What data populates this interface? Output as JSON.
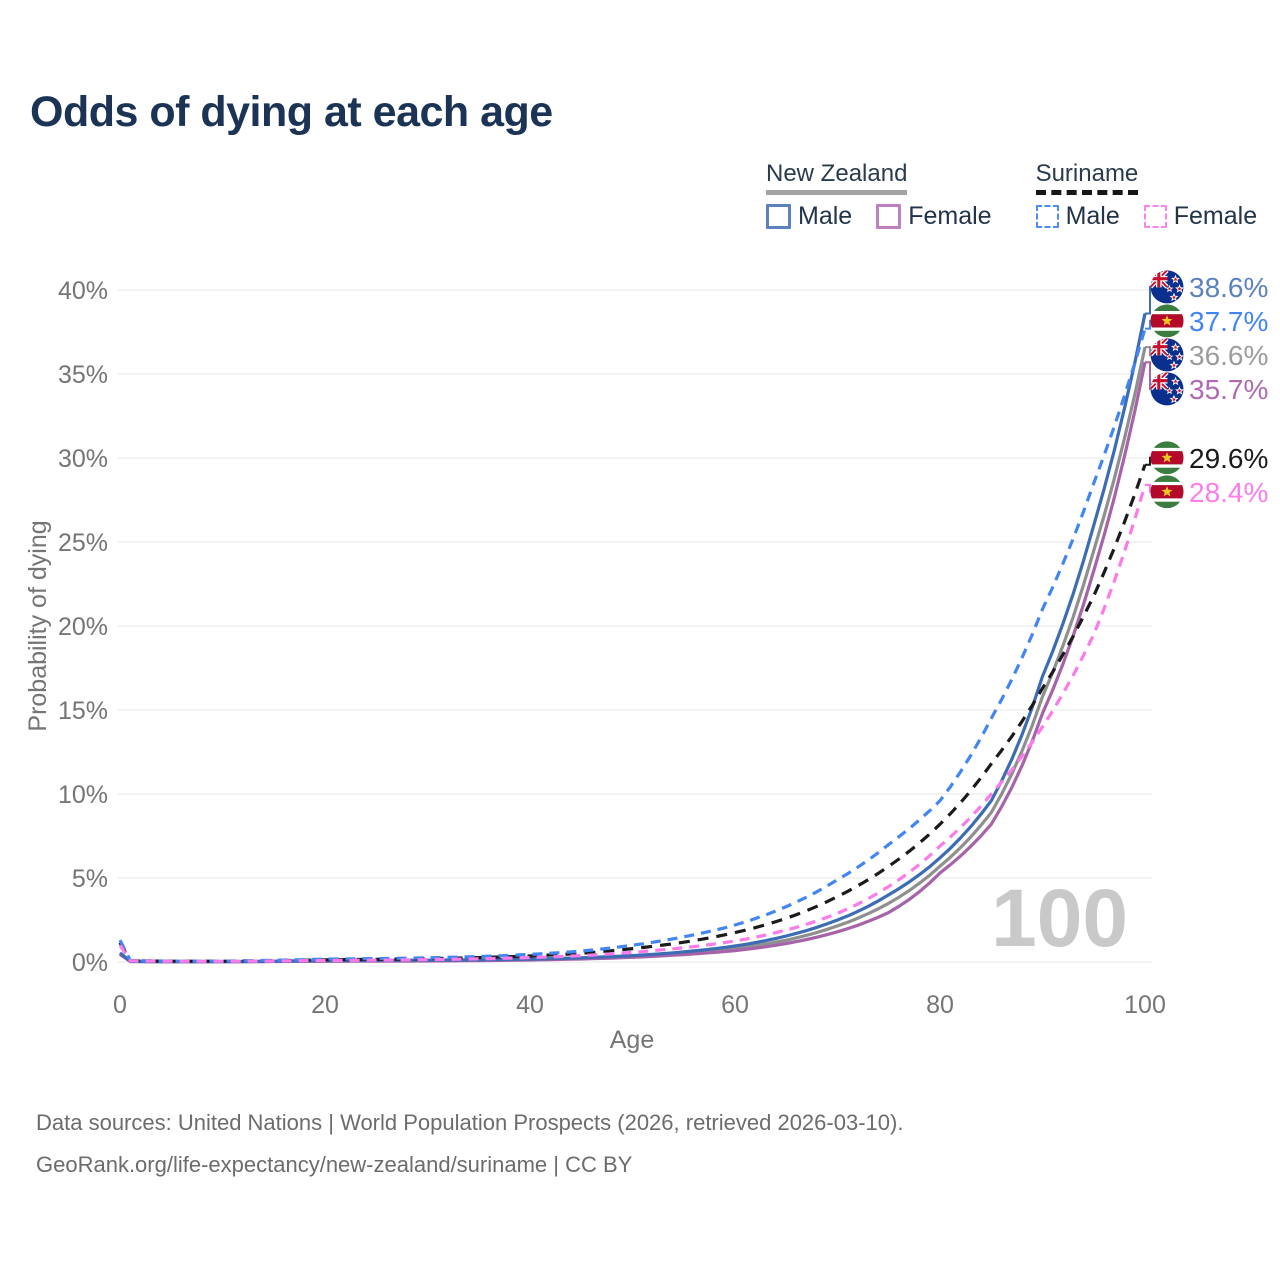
{
  "title": "Odds of dying at each age",
  "watermark_age": "100",
  "footer": {
    "line1": "Data sources: United Nations | World Population Prospects (2026, retrieved 2026-03-10).",
    "line2": "GeoRank.org/life-expectancy/new-zealand/suriname | CC BY"
  },
  "legend": {
    "groups": [
      {
        "name": "New Zealand",
        "line_style": "solid",
        "line_color": "#a3a3a3",
        "items": [
          {
            "label": "Male",
            "box_color": "#5b82bd",
            "box_style": "solid"
          },
          {
            "label": "Female",
            "box_color": "#c07fc0",
            "box_style": "solid"
          }
        ]
      },
      {
        "name": "Suriname",
        "line_style": "dashed",
        "line_color": "#161616",
        "items": [
          {
            "label": "Male",
            "box_color": "#4d8df6",
            "box_style": "dashed"
          },
          {
            "label": "Female",
            "box_color": "#fc83ea",
            "box_style": "dashed"
          }
        ]
      }
    ]
  },
  "chart_data": {
    "type": "line",
    "title": "Odds of dying at each age",
    "xlabel": "Age",
    "ylabel": "Probability of dying",
    "xlim": [
      0,
      100
    ],
    "ylim": [
      0,
      40
    ],
    "x_ticks": [
      0,
      20,
      40,
      60,
      80,
      100
    ],
    "x_tick_labels": [
      "0",
      "20",
      "40",
      "60",
      "80",
      "100"
    ],
    "y_ticks": [
      0,
      5,
      10,
      15,
      20,
      25,
      30,
      35,
      40
    ],
    "y_tick_labels": [
      "0%",
      "5%",
      "10%",
      "15%",
      "20%",
      "25%",
      "30%",
      "35%",
      "40%"
    ],
    "grid": true,
    "legend_position": "top-right",
    "series": [
      {
        "id": "nz_total",
        "name": "New Zealand Both sexes",
        "country": "New Zealand",
        "sex": "both",
        "color": "#8f8f8f",
        "label_color": "#9c9c9c",
        "dashed": false,
        "flag": "nz",
        "end_value": 36.6,
        "end_label": "36.6%",
        "points": [
          [
            0,
            0.5
          ],
          [
            1,
            0.035
          ],
          [
            5,
            0.018
          ],
          [
            10,
            0.018
          ],
          [
            15,
            0.04
          ],
          [
            20,
            0.065
          ],
          [
            25,
            0.075
          ],
          [
            30,
            0.085
          ],
          [
            35,
            0.105
          ],
          [
            40,
            0.145
          ],
          [
            45,
            0.21
          ],
          [
            50,
            0.33
          ],
          [
            55,
            0.52
          ],
          [
            60,
            0.81
          ],
          [
            65,
            1.3
          ],
          [
            70,
            2.15
          ],
          [
            75,
            3.5
          ],
          [
            80,
            5.7
          ],
          [
            85,
            8.9
          ],
          [
            90,
            15.8
          ],
          [
            95,
            24.5
          ],
          [
            100,
            36.6
          ]
        ]
      },
      {
        "id": "nz_female",
        "name": "New Zealand Female",
        "country": "New Zealand",
        "sex": "female",
        "color": "#a763aa",
        "label_color": "#b06ab3",
        "dashed": false,
        "flag": "nz",
        "end_value": 35.7,
        "end_label": "35.7%",
        "points": [
          [
            0,
            0.45
          ],
          [
            1,
            0.03
          ],
          [
            5,
            0.015
          ],
          [
            10,
            0.015
          ],
          [
            15,
            0.03
          ],
          [
            20,
            0.04
          ],
          [
            25,
            0.05
          ],
          [
            30,
            0.06
          ],
          [
            35,
            0.08
          ],
          [
            40,
            0.12
          ],
          [
            45,
            0.18
          ],
          [
            50,
            0.28
          ],
          [
            55,
            0.44
          ],
          [
            60,
            0.68
          ],
          [
            65,
            1.1
          ],
          [
            70,
            1.8
          ],
          [
            75,
            2.95
          ],
          [
            80,
            5.3
          ],
          [
            85,
            8.2
          ],
          [
            90,
            14.8
          ],
          [
            95,
            23.3
          ],
          [
            100,
            35.7
          ]
        ]
      },
      {
        "id": "nz_male",
        "name": "New Zealand Male",
        "country": "New Zealand",
        "sex": "male",
        "color": "#3c6cb4",
        "label_color": "#5b82bd",
        "dashed": false,
        "flag": "nz",
        "end_value": 38.6,
        "end_label": "38.6%",
        "points": [
          [
            0,
            0.55
          ],
          [
            1,
            0.04
          ],
          [
            5,
            0.02
          ],
          [
            10,
            0.02
          ],
          [
            15,
            0.05
          ],
          [
            20,
            0.09
          ],
          [
            25,
            0.1
          ],
          [
            30,
            0.11
          ],
          [
            35,
            0.13
          ],
          [
            40,
            0.17
          ],
          [
            45,
            0.25
          ],
          [
            50,
            0.38
          ],
          [
            55,
            0.6
          ],
          [
            60,
            0.95
          ],
          [
            65,
            1.55
          ],
          [
            70,
            2.5
          ],
          [
            75,
            4.0
          ],
          [
            80,
            6.2
          ],
          [
            85,
            9.6
          ],
          [
            90,
            17.0
          ],
          [
            95,
            26.0
          ],
          [
            100,
            38.6
          ]
        ]
      },
      {
        "id": "sur_total",
        "name": "Suriname Both sexes",
        "country": "Suriname",
        "sex": "both",
        "color": "#1b1b1b",
        "label_color": "#1b1b1b",
        "dashed": true,
        "flag": "sr",
        "end_value": 29.6,
        "end_label": "29.6%",
        "points": [
          [
            0,
            1.15
          ],
          [
            1,
            0.08
          ],
          [
            5,
            0.045
          ],
          [
            10,
            0.045
          ],
          [
            15,
            0.08
          ],
          [
            20,
            0.13
          ],
          [
            25,
            0.16
          ],
          [
            30,
            0.2
          ],
          [
            35,
            0.26
          ],
          [
            40,
            0.36
          ],
          [
            45,
            0.52
          ],
          [
            50,
            0.8
          ],
          [
            55,
            1.18
          ],
          [
            60,
            1.75
          ],
          [
            65,
            2.6
          ],
          [
            70,
            3.9
          ],
          [
            75,
            5.7
          ],
          [
            80,
            8.2
          ],
          [
            85,
            11.8
          ],
          [
            90,
            16.3
          ],
          [
            95,
            21.8
          ],
          [
            100,
            29.6
          ]
        ]
      },
      {
        "id": "sur_male",
        "name": "Suriname Male",
        "country": "Suriname",
        "sex": "male",
        "color": "#4285f4",
        "label_color": "#4285f4",
        "dashed": true,
        "flag": "sr",
        "end_value": 37.7,
        "end_label": "37.7%",
        "points": [
          [
            0,
            1.3
          ],
          [
            1,
            0.09
          ],
          [
            5,
            0.05
          ],
          [
            10,
            0.05
          ],
          [
            15,
            0.1
          ],
          [
            20,
            0.17
          ],
          [
            25,
            0.2
          ],
          [
            30,
            0.25
          ],
          [
            35,
            0.32
          ],
          [
            40,
            0.45
          ],
          [
            45,
            0.65
          ],
          [
            50,
            1.0
          ],
          [
            55,
            1.5
          ],
          [
            60,
            2.2
          ],
          [
            65,
            3.3
          ],
          [
            70,
            4.9
          ],
          [
            75,
            7.0
          ],
          [
            80,
            9.6
          ],
          [
            85,
            14.5
          ],
          [
            90,
            21.0
          ],
          [
            95,
            28.5
          ],
          [
            100,
            37.7
          ]
        ]
      },
      {
        "id": "sur_female",
        "name": "Suriname Female",
        "country": "Suriname",
        "sex": "female",
        "color": "#fa7be9",
        "label_color": "#fc7cea",
        "dashed": true,
        "flag": "sr",
        "end_value": 28.4,
        "end_label": "28.4%",
        "points": [
          [
            0,
            1.0
          ],
          [
            1,
            0.07
          ],
          [
            5,
            0.04
          ],
          [
            10,
            0.04
          ],
          [
            15,
            0.06
          ],
          [
            20,
            0.09
          ],
          [
            25,
            0.11
          ],
          [
            30,
            0.14
          ],
          [
            35,
            0.19
          ],
          [
            40,
            0.26
          ],
          [
            45,
            0.38
          ],
          [
            50,
            0.58
          ],
          [
            55,
            0.85
          ],
          [
            60,
            1.25
          ],
          [
            65,
            1.9
          ],
          [
            70,
            2.9
          ],
          [
            75,
            4.5
          ],
          [
            80,
            6.9
          ],
          [
            85,
            10.0
          ],
          [
            90,
            14.0
          ],
          [
            95,
            19.5
          ],
          [
            100,
            28.4
          ]
        ]
      }
    ]
  }
}
